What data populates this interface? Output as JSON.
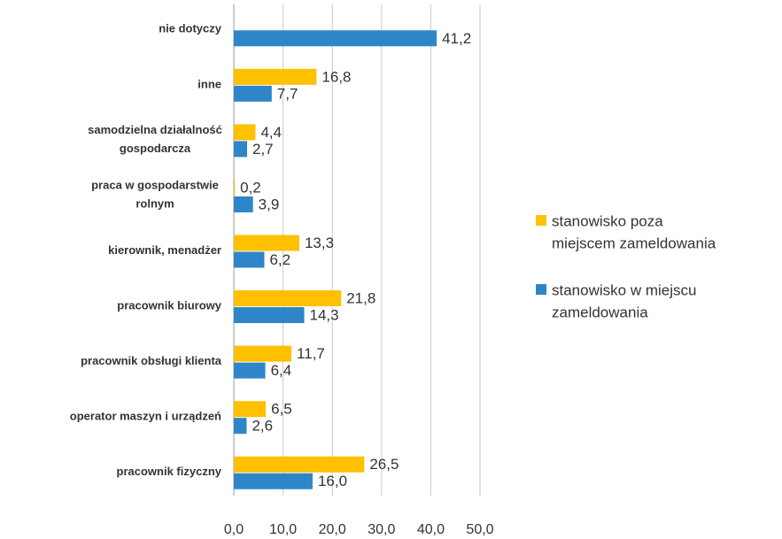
{
  "chart_data": {
    "type": "bar",
    "orientation": "horizontal",
    "categories": [
      "nie dotyczy",
      "inne",
      "samodzielna działalność gospodarcza",
      "praca w gospodarstwie rolnym",
      "kierownik, menadżer",
      "pracownik biurowy",
      "pracownik obsługi klienta",
      "operator maszyn i urządzeń",
      "pracownik fizyczny"
    ],
    "series": [
      {
        "name": "stanowisko poza miejscem zameldowania",
        "color": "#ffc000",
        "values": [
          null,
          16.8,
          4.4,
          0.2,
          13.3,
          21.8,
          11.7,
          6.5,
          26.5
        ],
        "value_labels": [
          null,
          "16,8",
          "4,4",
          "0,2",
          "13,3",
          "21,8",
          "11,7",
          "6,5",
          "26,5"
        ]
      },
      {
        "name": "stanowisko w miejscu zameldowania",
        "color": "#2e86c8",
        "values": [
          41.2,
          7.7,
          2.7,
          3.9,
          6.2,
          14.3,
          6.4,
          2.6,
          16.0
        ],
        "value_labels": [
          "41,2",
          "7,7",
          "2,7",
          "3,9",
          "6,2",
          "14,3",
          "6,4",
          "2,6",
          "16,0"
        ]
      }
    ],
    "xlim": [
      0,
      50
    ],
    "xticks": [
      {
        "value": 0,
        "label": "0,0"
      },
      {
        "value": 10,
        "label": "10,0"
      },
      {
        "value": 20,
        "label": "20,0"
      },
      {
        "value": 30,
        "label": "30,0"
      },
      {
        "value": 40,
        "label": "40,0"
      },
      {
        "value": 50,
        "label": "50,0"
      }
    ],
    "grid": true
  }
}
